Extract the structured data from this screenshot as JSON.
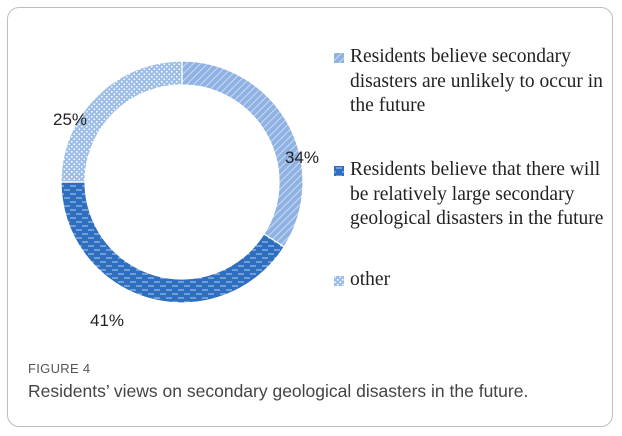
{
  "chart_data": {
    "type": "donut",
    "series": [
      {
        "label": "Residents believe secondary disasters are unlikely to occur in the future",
        "value": 34,
        "value_label": "34%",
        "color": "#8fb2e3",
        "pattern": "diagonal"
      },
      {
        "label": "Residents believe that there will be relatively large secondary geological disasters in the future",
        "value": 41,
        "value_label": "41%",
        "color": "#2f6fbf",
        "pattern": "dashes"
      },
      {
        "label": "other",
        "value": 25,
        "value_label": "25%",
        "color": "#9cbde8",
        "pattern": "dots"
      }
    ],
    "legend_position": "right"
  },
  "figure": {
    "label": "FIGURE 4",
    "caption": "Residents’ views on secondary geological disasters in the future."
  }
}
